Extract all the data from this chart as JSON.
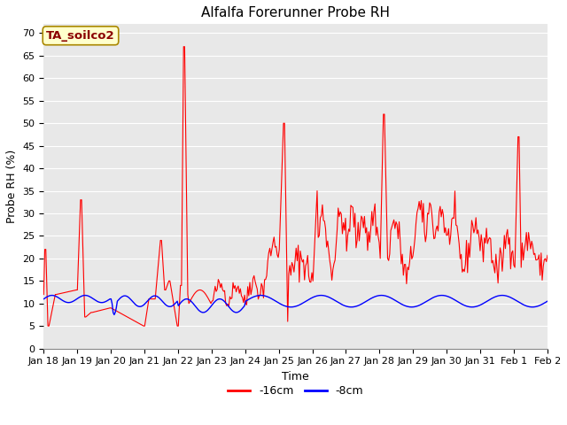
{
  "title": "Alfalfa Forerunner Probe RH",
  "ylabel": "Probe RH (%)",
  "xlabel": "Time",
  "ylim": [
    0,
    72
  ],
  "yticks": [
    0,
    5,
    10,
    15,
    20,
    25,
    30,
    35,
    40,
    45,
    50,
    55,
    60,
    65,
    70
  ],
  "plot_bg": "#e8e8e8",
  "line1_color": "red",
  "line2_color": "blue",
  "line1_label": "-16cm",
  "line2_label": "-8cm",
  "annotation_text": "TA_soilco2",
  "annotation_bbox_facecolor": "#ffffcc",
  "annotation_bbox_edgecolor": "#aa8800",
  "title_fontsize": 11,
  "axis_label_fontsize": 9,
  "tick_fontsize": 8,
  "legend_fontsize": 9,
  "n_points": 480,
  "x_start": 0,
  "x_end": 15,
  "xtick_labels": [
    "Jan 18",
    "Jan 19",
    "Jan 20",
    "Jan 21",
    "Jan 22",
    "Jan 23",
    "Jan 24",
    "Jan 25",
    "Jan 26",
    "Jan 27",
    "Jan 28",
    "Jan 29",
    "Jan 30",
    "Jan 31",
    "Feb 1",
    "Feb 2"
  ],
  "xtick_positions": [
    0,
    1,
    2,
    3,
    4,
    5,
    6,
    7,
    8,
    9,
    10,
    11,
    12,
    13,
    14,
    15
  ]
}
